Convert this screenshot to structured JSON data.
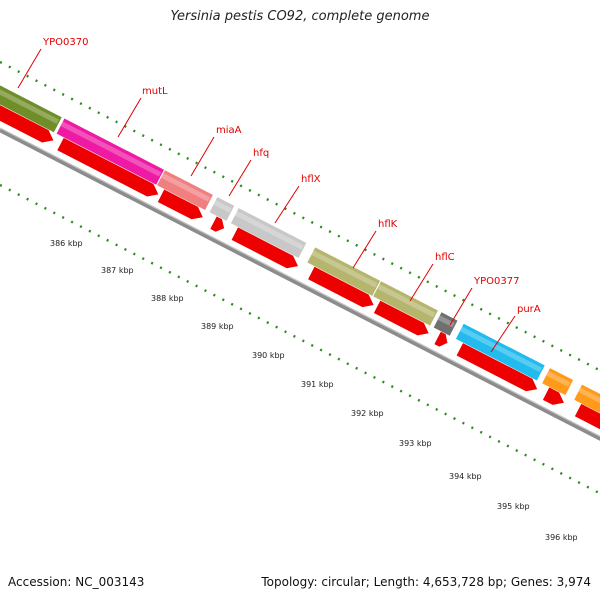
{
  "header": {
    "title": "Yersinia pestis CO92, complete genome"
  },
  "footer": {
    "accession": "Accession: NC_003143",
    "info": "Topology: circular; Length: 4,653,728 bp; Genes: 3,974"
  },
  "map": {
    "backbone_color": "#8c8c8c",
    "tick_color": "#2e8b1f",
    "cds_color": "#ee0000",
    "ticks": [
      {
        "label": "386 kbp"
      },
      {
        "label": "387 kbp"
      },
      {
        "label": "388 kbp"
      },
      {
        "label": "389 kbp"
      },
      {
        "label": "390 kbp"
      },
      {
        "label": "391 kbp"
      },
      {
        "label": "392 kbp"
      },
      {
        "label": "393 kbp"
      },
      {
        "label": "394 kbp"
      },
      {
        "label": "395 kbp"
      },
      {
        "label": "396 kbp"
      }
    ],
    "genes": [
      {
        "label": "YPO0370",
        "color": "#6f8e2a"
      },
      {
        "label": "mutL",
        "color": "#ee1aa4"
      },
      {
        "label": "miaA",
        "color": "#f08080"
      },
      {
        "label": "hfq",
        "color": "#c8c8c8"
      },
      {
        "label": "hflX",
        "color": "#c8c8c8"
      },
      {
        "label": "hflK",
        "color": "#b5b56e"
      },
      {
        "label": "hflC",
        "color": "#b5b56e"
      },
      {
        "label": "YPO0377",
        "color": "#707070"
      },
      {
        "label": "purA",
        "color": "#22bbee"
      },
      {
        "label": "",
        "color": "#ff9a1a"
      },
      {
        "label": "",
        "color": "#ff9a1a"
      }
    ]
  }
}
